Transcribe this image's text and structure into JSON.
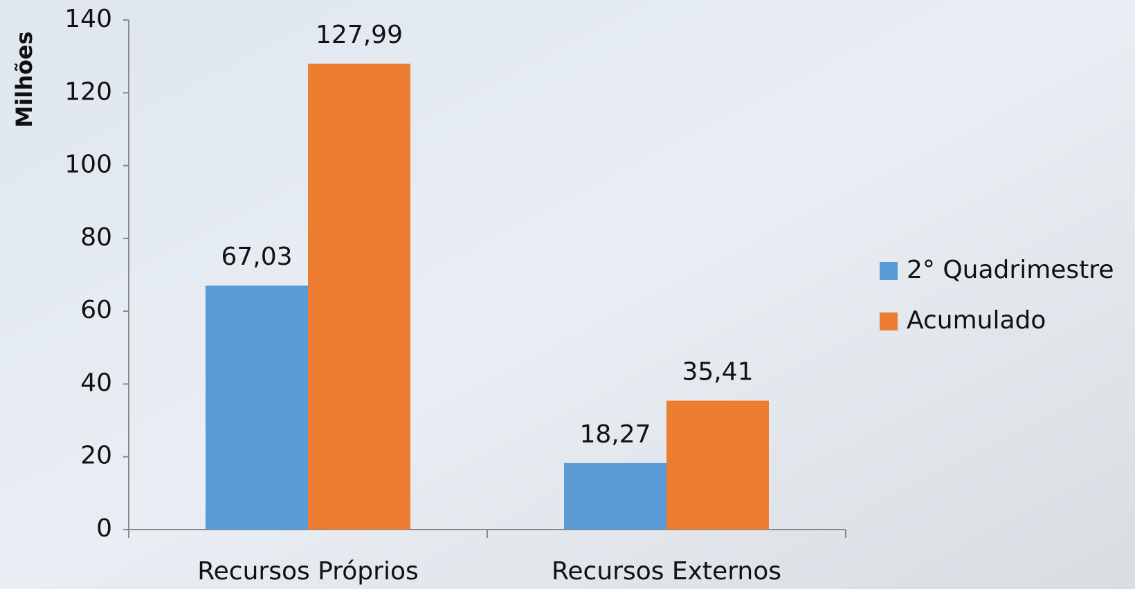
{
  "chart_data": {
    "type": "bar",
    "y_label": "Milhões",
    "categories": [
      "Recursos Próprios",
      "Recursos Externos"
    ],
    "series": [
      {
        "name": "2° Quadrimestre",
        "color": "#5b9bd5",
        "values": [
          67.03,
          18.27
        ],
        "value_labels": [
          "67,03",
          "18,27"
        ]
      },
      {
        "name": "Acumulado",
        "color": "#ed7d31",
        "values": [
          127.99,
          35.41
        ],
        "value_labels": [
          "127,99",
          "35,41"
        ]
      }
    ],
    "ylim": [
      0,
      140
    ],
    "yticks": [
      0,
      20,
      40,
      60,
      80,
      100,
      120,
      140
    ],
    "grid": false,
    "legend": "right"
  }
}
